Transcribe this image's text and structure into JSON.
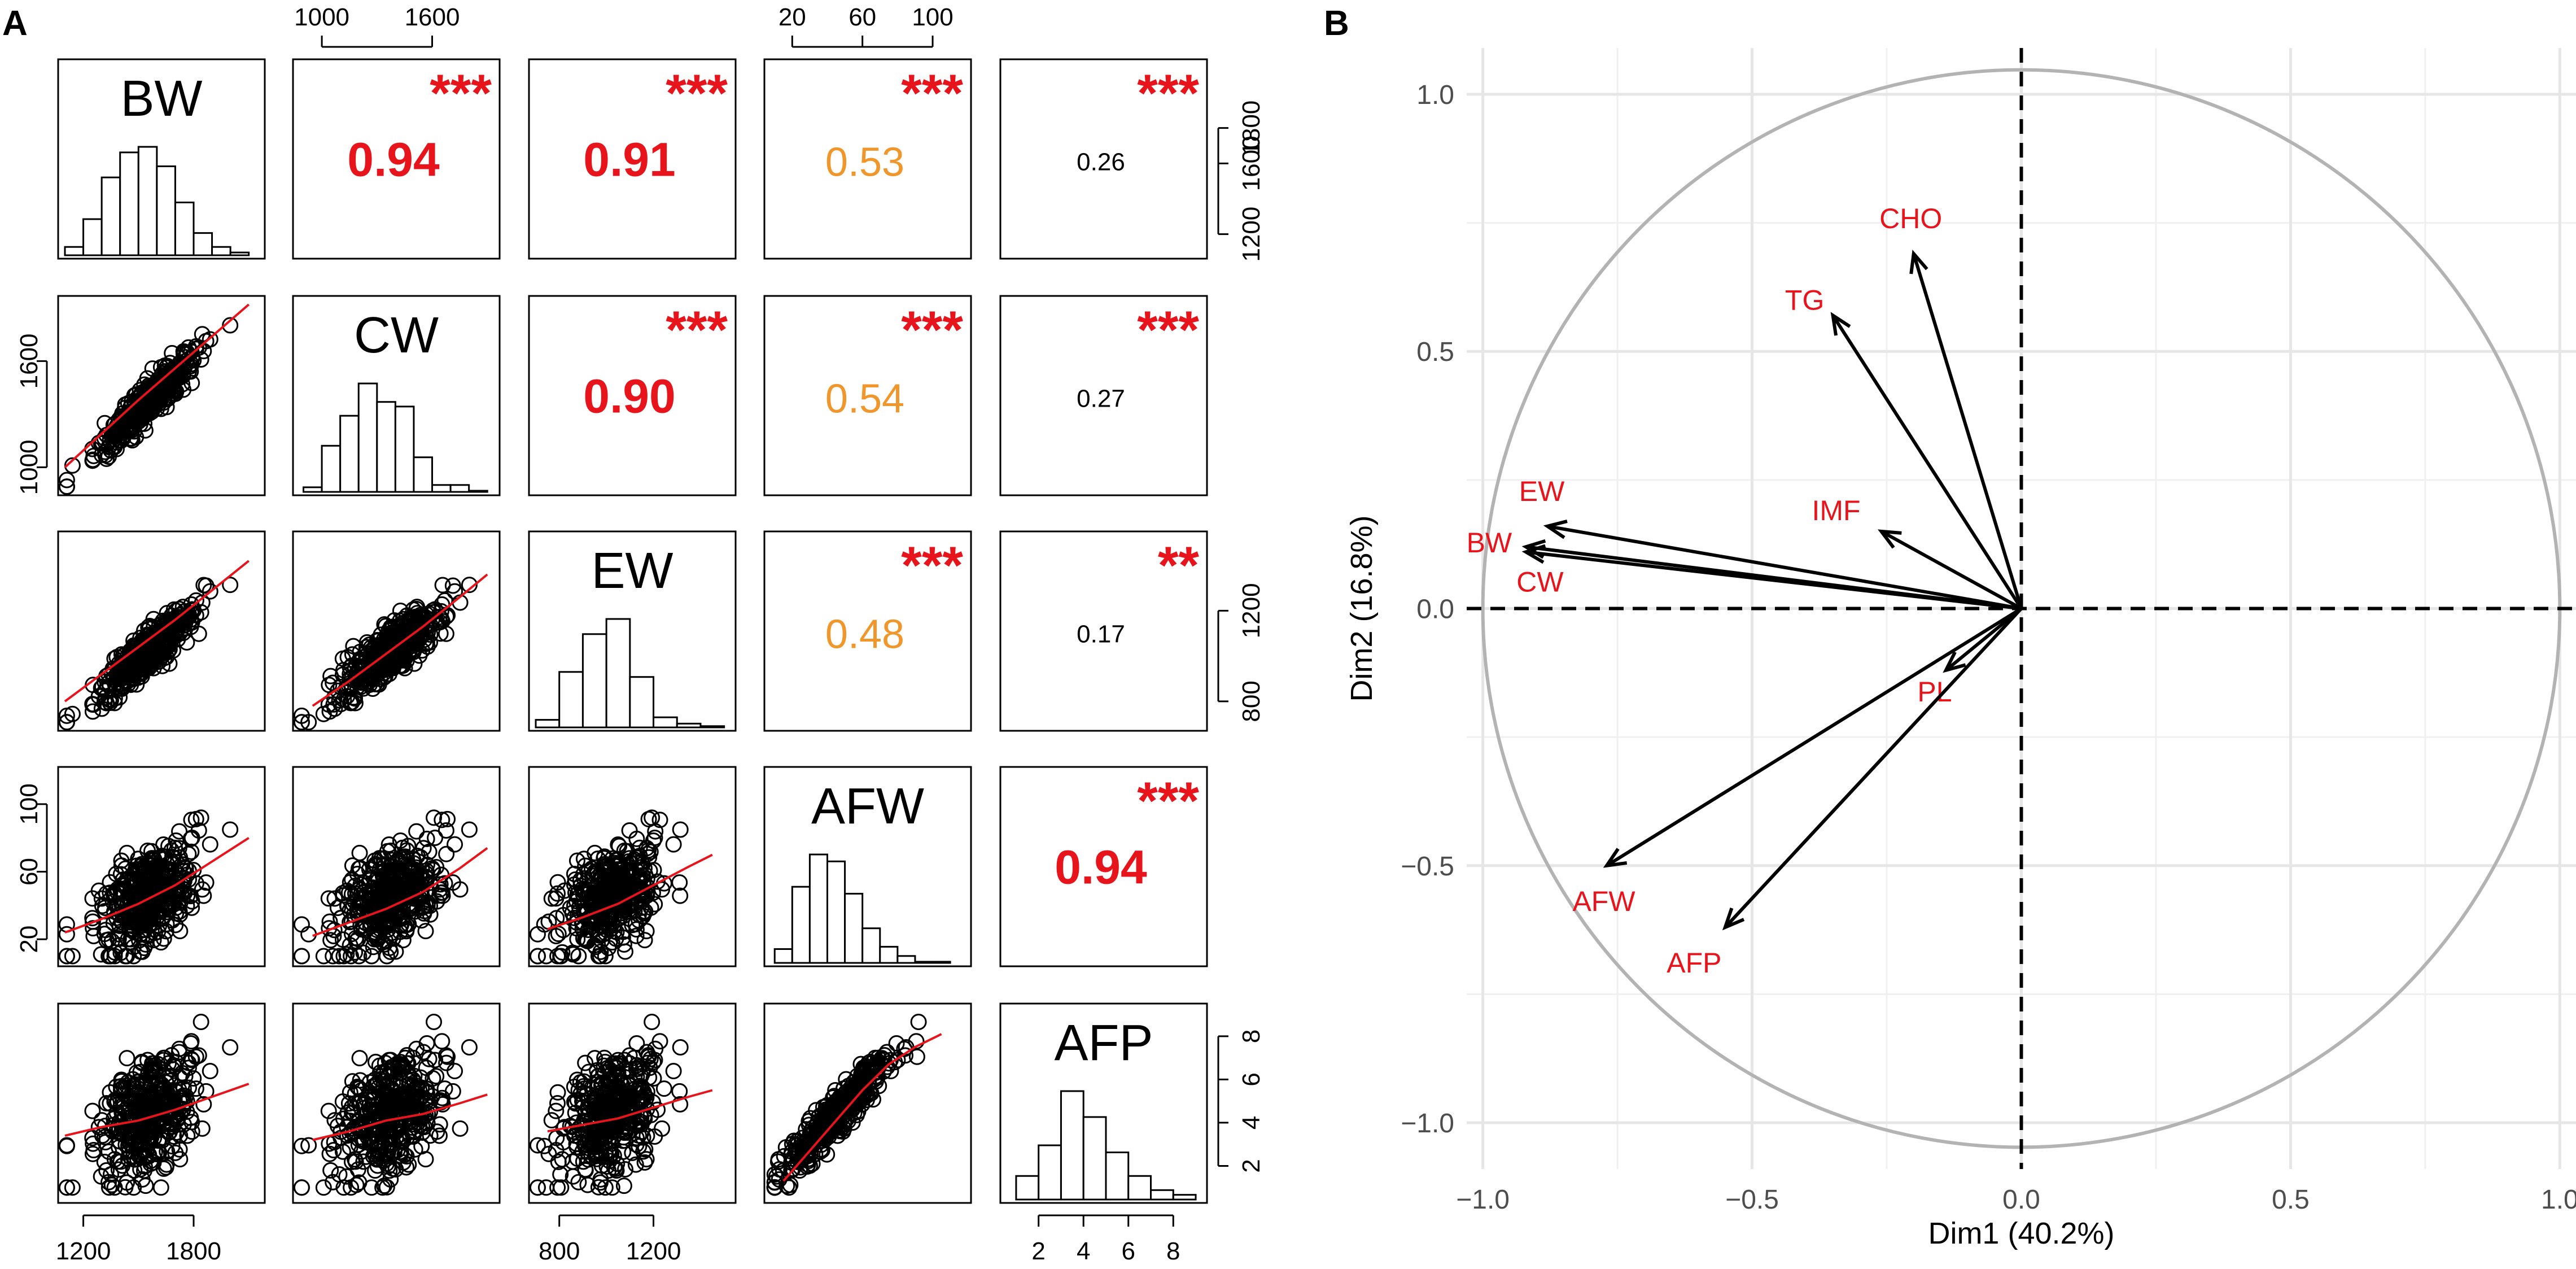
{
  "figure": {
    "panel_a_label": "A",
    "panel_b_label": "B"
  },
  "colors": {
    "red": "#e8141b",
    "orange": "#f0962a",
    "black": "#000000",
    "grid": "#e6e6e6",
    "circle": "#b3b3b3",
    "arrow_label": "#e8141b"
  },
  "chart_data": [
    {
      "type": "scatter",
      "subtype": "correlation-pairs-matrix",
      "variables": [
        "BW",
        "CW",
        "EW",
        "AFW",
        "AFP"
      ],
      "top_axis": {
        "CW": [
          "1000",
          "1600"
        ],
        "AFW": [
          "20",
          "60",
          "100"
        ]
      },
      "bottom_axis": {
        "BW": [
          "1200",
          "1800"
        ],
        "EW": [
          "800",
          "1200"
        ],
        "AFP": [
          "2",
          "4",
          "6",
          "8"
        ]
      },
      "left_axis": {
        "CW": [
          "1000",
          "1600"
        ],
        "AFW": [
          "20",
          "60",
          "100"
        ]
      },
      "right_axis": {
        "BW": [
          "1200",
          "1600",
          "1800"
        ],
        "EW": [
          "800",
          "1200"
        ],
        "AFP": [
          "2",
          "4",
          "6",
          "8"
        ]
      },
      "correlations": [
        {
          "a": "BW",
          "b": "CW",
          "r": "0.94",
          "stars": "***",
          "color": "red"
        },
        {
          "a": "BW",
          "b": "EW",
          "r": "0.91",
          "stars": "***",
          "color": "red"
        },
        {
          "a": "BW",
          "b": "AFW",
          "r": "0.53",
          "stars": "***",
          "color": "orange"
        },
        {
          "a": "BW",
          "b": "AFP",
          "r": "0.26",
          "stars": "***",
          "color": "black"
        },
        {
          "a": "CW",
          "b": "EW",
          "r": "0.90",
          "stars": "***",
          "color": "red"
        },
        {
          "a": "CW",
          "b": "AFW",
          "r": "0.54",
          "stars": "***",
          "color": "orange"
        },
        {
          "a": "CW",
          "b": "AFP",
          "r": "0.27",
          "stars": "***",
          "color": "black"
        },
        {
          "a": "EW",
          "b": "AFW",
          "r": "0.48",
          "stars": "***",
          "color": "orange"
        },
        {
          "a": "EW",
          "b": "AFP",
          "r": "0.17",
          "stars": "**",
          "color": "black"
        },
        {
          "a": "AFW",
          "b": "AFP",
          "r": "0.94",
          "stars": "***",
          "color": "red"
        }
      ],
      "histograms": {
        "BW": {
          "bins": [
            1100,
            1200,
            1300,
            1400,
            1500,
            1600,
            1700,
            1800,
            1900,
            2000,
            2100
          ],
          "counts": [
            6,
            26,
            56,
            74,
            78,
            64,
            38,
            16,
            6,
            2
          ]
        },
        "CW": {
          "bins": [
            900,
            1000,
            1100,
            1200,
            1300,
            1400,
            1500,
            1600,
            1700,
            1800,
            1900
          ],
          "counts": [
            4,
            40,
            66,
            94,
            78,
            74,
            30,
            6,
            6,
            1
          ]
        },
        "EW": {
          "bins": [
            700,
            800,
            900,
            1000,
            1100,
            1200,
            1300,
            1400,
            1500
          ],
          "counts": [
            6,
            44,
            74,
            86,
            40,
            8,
            3,
            1
          ]
        },
        "AFW": {
          "bins": [
            10,
            20,
            30,
            40,
            50,
            60,
            70,
            80,
            90,
            100,
            110
          ],
          "counts": [
            12,
            66,
            94,
            88,
            60,
            30,
            14,
            6,
            1,
            1
          ]
        },
        "AFP": {
          "bins": [
            1,
            2,
            3,
            4,
            5,
            6,
            7,
            8,
            9
          ],
          "counts": [
            20,
            46,
            92,
            70,
            40,
            20,
            8,
            4
          ]
        }
      },
      "loess": {
        "CW|BW": [
          [
            1100,
            1000
          ],
          [
            1300,
            1190
          ],
          [
            1500,
            1380
          ],
          [
            1700,
            1560
          ],
          [
            1900,
            1740
          ],
          [
            2100,
            1920
          ]
        ],
        "EW|BW": [
          [
            1100,
            800
          ],
          [
            1300,
            920
          ],
          [
            1500,
            1040
          ],
          [
            1700,
            1160
          ],
          [
            1900,
            1290
          ],
          [
            2100,
            1420
          ]
        ],
        "EW|CW": [
          [
            950,
            780
          ],
          [
            1150,
            890
          ],
          [
            1350,
            1010
          ],
          [
            1550,
            1130
          ],
          [
            1750,
            1260
          ],
          [
            1900,
            1360
          ]
        ],
        "AFW|BW": [
          [
            1100,
            24
          ],
          [
            1300,
            32
          ],
          [
            1500,
            41
          ],
          [
            1700,
            52
          ],
          [
            1900,
            66
          ],
          [
            2100,
            80
          ]
        ],
        "AFW|CW": [
          [
            950,
            22
          ],
          [
            1150,
            30
          ],
          [
            1350,
            38
          ],
          [
            1550,
            48
          ],
          [
            1750,
            62
          ],
          [
            1900,
            74
          ]
        ],
        "AFW|EW": [
          [
            750,
            26
          ],
          [
            900,
            33
          ],
          [
            1050,
            41
          ],
          [
            1200,
            52
          ],
          [
            1350,
            63
          ],
          [
            1450,
            70
          ]
        ],
        "AFP|BW": [
          [
            1100,
            3.4
          ],
          [
            1300,
            3.8
          ],
          [
            1500,
            4.1
          ],
          [
            1700,
            4.6
          ],
          [
            1900,
            5.2
          ],
          [
            2100,
            5.8
          ]
        ],
        "AFP|CW": [
          [
            950,
            3.2
          ],
          [
            1150,
            3.6
          ],
          [
            1350,
            4.1
          ],
          [
            1550,
            4.4
          ],
          [
            1750,
            4.9
          ],
          [
            1900,
            5.3
          ]
        ],
        "AFP|EW": [
          [
            750,
            3.6
          ],
          [
            900,
            3.9
          ],
          [
            1050,
            4.2
          ],
          [
            1200,
            4.7
          ],
          [
            1350,
            5.2
          ],
          [
            1450,
            5.5
          ]
        ],
        "AFP|AFW": [
          [
            15,
            1.3
          ],
          [
            30,
            2.7
          ],
          [
            45,
            4.1
          ],
          [
            60,
            5.5
          ],
          [
            75,
            6.7
          ],
          [
            90,
            7.5
          ],
          [
            105,
            8.1
          ]
        ]
      }
    },
    {
      "type": "scatter",
      "subtype": "pca-variable-correlation-circle",
      "xlabel": "Dim1 (40.2%)",
      "ylabel": "Dim2 (16.8%)",
      "xlim": [
        -1.03,
        1.03
      ],
      "ylim": [
        -1.09,
        1.09
      ],
      "xticks": [
        -1.0,
        -0.5,
        0.0,
        0.5,
        1.0
      ],
      "yticks": [
        -1.0,
        -0.5,
        0.0,
        0.5,
        1.0
      ],
      "xtick_labels": [
        "−1.0",
        "−0.5",
        "0.0",
        "0.5",
        "1.0"
      ],
      "ytick_labels": [
        "−1.0",
        "−0.5",
        "0.0",
        "0.5",
        "1.0"
      ],
      "grid": true,
      "vectors": [
        {
          "label": "CHO",
          "x": -0.2,
          "y": 0.69
        },
        {
          "label": "TG",
          "x": -0.35,
          "y": 0.57
        },
        {
          "label": "IMF",
          "x": -0.26,
          "y": 0.15
        },
        {
          "label": "EW",
          "x": -0.88,
          "y": 0.16
        },
        {
          "label": "BW",
          "x": -0.92,
          "y": 0.12
        },
        {
          "label": "CW",
          "x": -0.92,
          "y": 0.11
        },
        {
          "label": "PL",
          "x": -0.14,
          "y": -0.12
        },
        {
          "label": "AFW",
          "x": -0.77,
          "y": -0.5
        },
        {
          "label": "AFP",
          "x": -0.55,
          "y": -0.62
        }
      ]
    }
  ]
}
